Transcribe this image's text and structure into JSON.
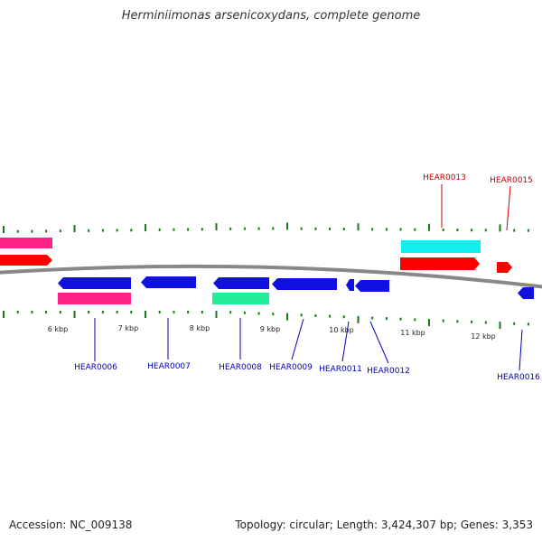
{
  "title": "Herminiimonas arsenicoxydans, complete genome",
  "footer": {
    "accession": "Accession: NC_009138",
    "info": "Topology: circular; Length: 3,424,307 bp; Genes: 3,353"
  },
  "scale_labels": [
    "6 kbp",
    "7 kbp",
    "8 kbp",
    "9 kbp",
    "10 kbp",
    "11 kbp",
    "12 kbp"
  ],
  "gene_labels": {
    "forward": [
      "HEAR0013",
      "HEAR0015"
    ],
    "reverse": [
      "HEAR0006",
      "HEAR0007",
      "HEAR0008",
      "HEAR0009",
      "HEAR0011",
      "HEAR0012",
      "HEAR0016"
    ]
  },
  "colors": {
    "forward_label": "#cc0000",
    "reverse_label": "#0000bb",
    "cds_forward": "#ff0000",
    "cds_reverse": "#1010e0",
    "rrna": "#ff2288",
    "trna": "#22ee99",
    "misc": "#11eeee",
    "backbone": "#888888",
    "ticks": "#1a7a1a"
  }
}
